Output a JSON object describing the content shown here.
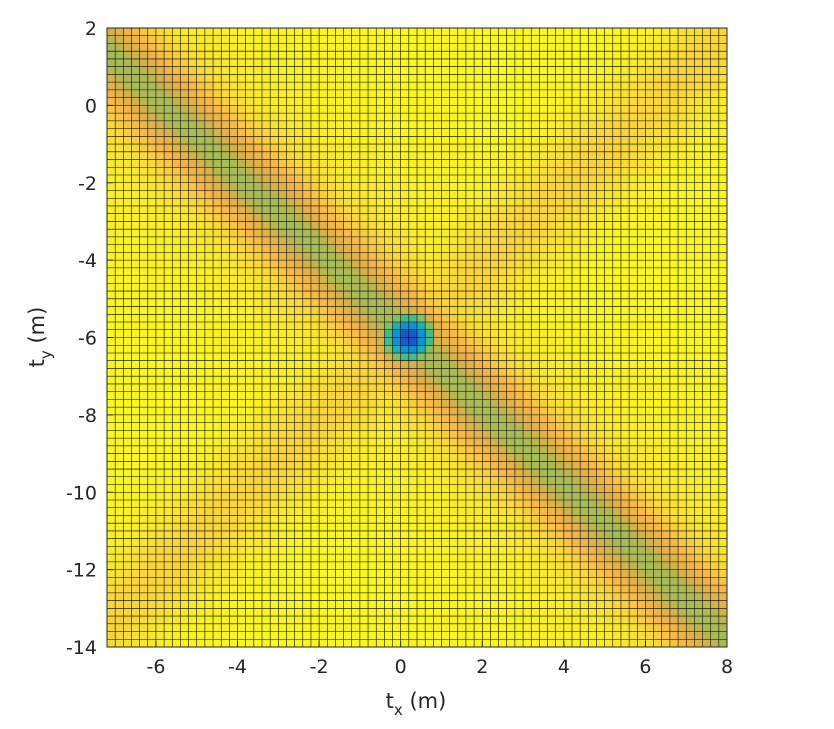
{
  "chart_data": {
    "type": "heatmap",
    "title": "",
    "xlabel": {
      "base": "t",
      "sub": "x",
      "unit": " (m)"
    },
    "ylabel": {
      "base": "t",
      "sub": "y",
      "unit": " (m)"
    },
    "xlim": [
      -7.2,
      8
    ],
    "ylim": [
      -14,
      2
    ],
    "x_ticks": [
      -6,
      -4,
      -2,
      0,
      2,
      4,
      6,
      8
    ],
    "y_ticks": [
      2,
      0,
      -2,
      -4,
      -6,
      -8,
      -10,
      -12,
      -14
    ],
    "x_tick_labels": [
      "-6",
      "-4",
      "-2",
      "0",
      "2",
      "4",
      "6",
      "8"
    ],
    "y_tick_labels": [
      "2",
      "0",
      "-2",
      "-4",
      "-6",
      "-8",
      "-10",
      "-12",
      "-14"
    ],
    "grid_step": 0.2,
    "minimum": {
      "x": 0.2,
      "y": -6
    },
    "structure": {
      "main_diagonal": "strong low-value band along x + y = -5.8 (slope -1)",
      "cross_diagonal": "weaker band along y = x - 6.2 (slope +1)"
    },
    "value_range_description": "normalized cost; 0 at minimum (dark blue), 1 far from bands (yellow)",
    "colormap": [
      "#3e26a8",
      "#0b6fe0",
      "#12a4c8",
      "#2fb89a",
      "#8cbf5e",
      "#d9b04a",
      "#f6b64a",
      "#f8d83a",
      "#f9f423"
    ],
    "edge_color": "#000000",
    "grid": "mesh edges drawn on every cell"
  }
}
